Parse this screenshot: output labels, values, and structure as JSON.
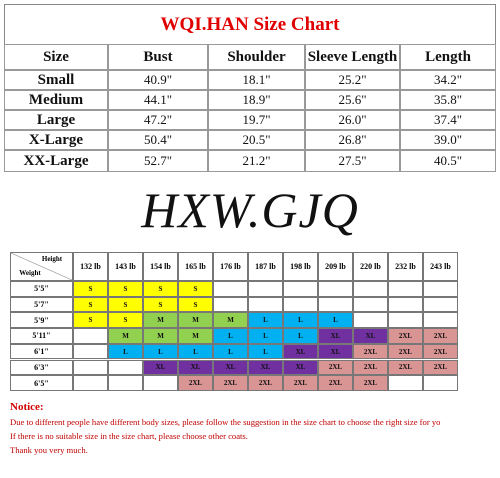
{
  "size_chart": {
    "title": "WQI.HAN Size Chart",
    "header": [
      "Size",
      "Bust",
      "Shoulder",
      "Sleeve Length",
      "Length"
    ],
    "rows": [
      [
        "Small",
        "40.9\"",
        "18.1\"",
        "25.2\"",
        "34.2\""
      ],
      [
        "Medium",
        "44.1\"",
        "18.9\"",
        "25.6\"",
        "35.8\""
      ],
      [
        "Large",
        "47.2\"",
        "19.7\"",
        "26.0\"",
        "37.4\""
      ],
      [
        "X-Large",
        "50.4\"",
        "20.5\"",
        "26.8\"",
        "39.0\""
      ],
      [
        "XX-Large",
        "52.7\"",
        "21.2\"",
        "27.5\"",
        "40.5\""
      ]
    ]
  },
  "brand": "HXW.GJQ",
  "fit_chart": {
    "corner_top": "Height",
    "corner_bottom": "Weight",
    "weights": [
      "132 lb",
      "143 lb",
      "154 lb",
      "165 lb",
      "176 lb",
      "187 lb",
      "198 lb",
      "209 lb",
      "220 lb",
      "232 lb",
      "243 lb"
    ],
    "colors": {
      "S": "#ffff00",
      "M": "#92d050",
      "L": "#00b0f0",
      "XL": "#7030a0",
      "2XL": "#d99594"
    },
    "rows": [
      {
        "height": "5'5\"",
        "cells": [
          "S",
          "S",
          "S",
          "S",
          null,
          null,
          null,
          null,
          null,
          null,
          null
        ]
      },
      {
        "height": "5'7\"",
        "cells": [
          "S",
          "S",
          "S",
          "S",
          null,
          null,
          null,
          null,
          null,
          null,
          null
        ]
      },
      {
        "height": "5'9\"",
        "cells": [
          "S",
          "S",
          "M",
          "M",
          "M",
          "L",
          "L",
          "L",
          null,
          null,
          null
        ]
      },
      {
        "height": "5'11\"",
        "cells": [
          null,
          "M",
          "M",
          "M",
          "L",
          "L",
          "L",
          "XL",
          "XL",
          "2XL",
          "2XL"
        ]
      },
      {
        "height": "6'1\"",
        "cells": [
          null,
          "L",
          "L",
          "L",
          "L",
          "L",
          "XL",
          "XL",
          "2XL",
          "2XL",
          "2XL"
        ]
      },
      {
        "height": "6'3\"",
        "cells": [
          null,
          null,
          "XL",
          "XL",
          "XL",
          "XL",
          "XL",
          "2XL",
          "2XL",
          "2XL",
          "2XL"
        ]
      },
      {
        "height": "6'5\"",
        "cells": [
          null,
          null,
          null,
          "2XL",
          "2XL",
          "2XL",
          "2XL",
          "2XL",
          "2XL",
          null,
          null
        ]
      }
    ]
  },
  "notice": {
    "title": "Notice:",
    "lines": [
      "Due to different people have different body sizes, please follow the suggestion in the size chart to choose the right size for yo",
      "If there is no suitable size in the size chart, please choose other coats.",
      "Thank you very much."
    ]
  }
}
